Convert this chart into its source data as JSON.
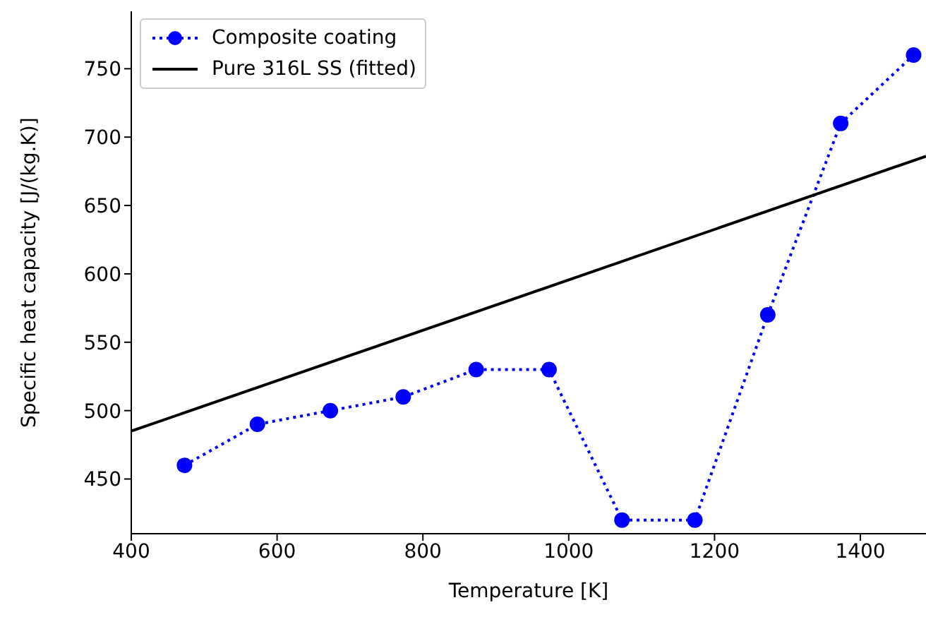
{
  "chart_data": {
    "type": "line",
    "xlabel": "Temperature [K]",
    "ylabel": "Specific heat capacity [J/(kg.K)]",
    "xlim": [
      400,
      1490
    ],
    "xticks": [
      400,
      600,
      800,
      1000,
      1200,
      1400
    ],
    "ylim": [
      410,
      792
    ],
    "yticks": [
      450,
      500,
      550,
      600,
      650,
      700,
      750
    ],
    "grid": false,
    "legend": "top left",
    "series": [
      {
        "name": "Composite coating",
        "color": "#0000ff",
        "marker": "circle",
        "line_style": "dotted",
        "x": [
          473,
          573,
          673,
          773,
          873,
          973,
          1073,
          1173,
          1273,
          1373,
          1473
        ],
        "values": [
          460,
          490,
          500,
          510,
          530,
          530,
          420,
          420,
          570,
          710,
          760
        ]
      },
      {
        "name": "Pure 316L SS (fitted)",
        "color": "#000000",
        "marker": "none",
        "line_style": "solid",
        "x": [
          400,
          1490
        ],
        "values": [
          485,
          686
        ]
      }
    ]
  }
}
